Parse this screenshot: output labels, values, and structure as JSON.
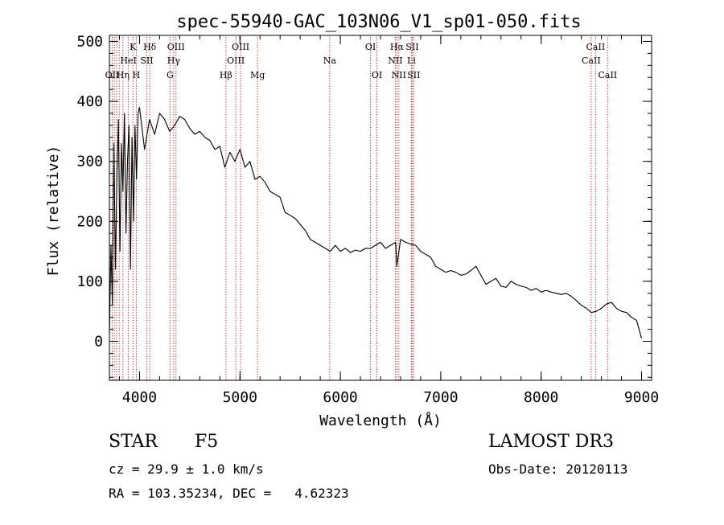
{
  "chart_data": {
    "type": "line",
    "title": "spec-55940-GAC_103N06_V1_sp01-050.fits",
    "xlabel": "Wavelength (Å)",
    "ylabel": "Flux (relative)",
    "xlim": [
      3700,
      9100
    ],
    "ylim": [
      -65,
      510
    ],
    "xticks": [
      4000,
      5000,
      6000,
      7000,
      8000,
      9000
    ],
    "yticks": [
      0,
      100,
      200,
      300,
      400,
      500
    ],
    "x_minor_step": 200,
    "y_minor_step": 20,
    "grid": false,
    "series": [
      {
        "name": "spectrum",
        "x": [
          3700,
          3715,
          3730,
          3745,
          3760,
          3775,
          3790,
          3805,
          3820,
          3835,
          3850,
          3865,
          3880,
          3895,
          3910,
          3925,
          3940,
          3955,
          3970,
          3985,
          4000,
          4050,
          4100,
          4150,
          4200,
          4250,
          4300,
          4350,
          4400,
          4450,
          4500,
          4550,
          4600,
          4650,
          4700,
          4750,
          4800,
          4850,
          4900,
          4950,
          5000,
          5050,
          5100,
          5150,
          5200,
          5250,
          5300,
          5350,
          5400,
          5450,
          5500,
          5550,
          5600,
          5650,
          5700,
          5750,
          5800,
          5850,
          5900,
          5950,
          6000,
          6050,
          6100,
          6150,
          6200,
          6250,
          6300,
          6350,
          6400,
          6450,
          6500,
          6550,
          6563,
          6600,
          6650,
          6700,
          6750,
          6800,
          6850,
          6900,
          6950,
          7000,
          7050,
          7100,
          7150,
          7200,
          7250,
          7300,
          7350,
          7400,
          7450,
          7500,
          7550,
          7600,
          7650,
          7700,
          7750,
          7800,
          7850,
          7900,
          7950,
          8000,
          8050,
          8100,
          8150,
          8200,
          8250,
          8300,
          8350,
          8400,
          8450,
          8500,
          8550,
          8600,
          8650,
          8700,
          8750,
          8800,
          8850,
          8900,
          8950,
          9000
        ],
        "y": [
          10,
          160,
          60,
          330,
          120,
          280,
          370,
          150,
          330,
          250,
          380,
          180,
          300,
          360,
          120,
          340,
          200,
          360,
          270,
          380,
          390,
          320,
          370,
          345,
          380,
          370,
          350,
          360,
          375,
          370,
          355,
          345,
          350,
          340,
          335,
          320,
          325,
          290,
          315,
          300,
          320,
          290,
          300,
          270,
          275,
          265,
          250,
          245,
          240,
          215,
          210,
          205,
          195,
          185,
          170,
          165,
          160,
          155,
          150,
          160,
          150,
          155,
          148,
          152,
          150,
          155,
          155,
          160,
          165,
          155,
          160,
          165,
          125,
          170,
          165,
          162,
          160,
          150,
          145,
          140,
          125,
          120,
          115,
          118,
          115,
          110,
          112,
          118,
          125,
          110,
          95,
          100,
          105,
          92,
          90,
          100,
          95,
          92,
          90,
          85,
          88,
          82,
          85,
          82,
          80,
          78,
          80,
          75,
          68,
          60,
          55,
          48,
          50,
          55,
          62,
          65,
          55,
          50,
          48,
          40,
          35,
          5
        ]
      }
    ],
    "line_markers": [
      {
        "wavelength": 3728,
        "label": "OII",
        "row": 3
      },
      {
        "wavelength": 3750,
        "label": "",
        "row": 0
      },
      {
        "wavelength": 3771,
        "label": "",
        "row": 0
      },
      {
        "wavelength": 3798,
        "label": "",
        "row": 0
      },
      {
        "wavelength": 3835,
        "label": "Hη",
        "row": 3
      },
      {
        "wavelength": 3889,
        "label": "HeI",
        "row": 2
      },
      {
        "wavelength": 3934,
        "label": "K",
        "row": 1
      },
      {
        "wavelength": 3968,
        "label": "H",
        "row": 3
      },
      {
        "wavelength": 4072,
        "label": "SII",
        "row": 2
      },
      {
        "wavelength": 4102,
        "label": "Hδ",
        "row": 1
      },
      {
        "wavelength": 4304,
        "label": "G",
        "row": 3
      },
      {
        "wavelength": 4340,
        "label": "Hγ",
        "row": 2
      },
      {
        "wavelength": 4363,
        "label": "OIII",
        "row": 1
      },
      {
        "wavelength": 4861,
        "label": "Hβ",
        "row": 3
      },
      {
        "wavelength": 4959,
        "label": "OIII",
        "row": 2
      },
      {
        "wavelength": 5007,
        "label": "OIII",
        "row": 1
      },
      {
        "wavelength": 5175,
        "label": "Mg",
        "row": 3
      },
      {
        "wavelength": 5894,
        "label": "Na",
        "row": 2
      },
      {
        "wavelength": 6300,
        "label": "OI",
        "row": 1
      },
      {
        "wavelength": 6364,
        "label": "OI",
        "row": 3
      },
      {
        "wavelength": 6548,
        "label": "NII",
        "row": 2
      },
      {
        "wavelength": 6563,
        "label": "Hα",
        "row": 1
      },
      {
        "wavelength": 6583,
        "label": "NII",
        "row": 3
      },
      {
        "wavelength": 6708,
        "label": "Li",
        "row": 2
      },
      {
        "wavelength": 6716,
        "label": "SII",
        "row": 1
      },
      {
        "wavelength": 6731,
        "label": "SII",
        "row": 3
      },
      {
        "wavelength": 8498,
        "label": "CaII",
        "row": 2
      },
      {
        "wavelength": 8542,
        "label": "CaII",
        "row": 1
      },
      {
        "wavelength": 8662,
        "label": "CaII",
        "row": 3
      }
    ],
    "marker_color": "#b22222",
    "line_color": "#000000"
  },
  "info": {
    "class": "STAR",
    "subclass": "F5",
    "survey": "LAMOST DR3",
    "cz": "cz = 29.9 ± 1.0 km/s",
    "obs_date": "Obs-Date: 20120113",
    "coords": "RA = 103.35234, DEC =   4.62323"
  }
}
